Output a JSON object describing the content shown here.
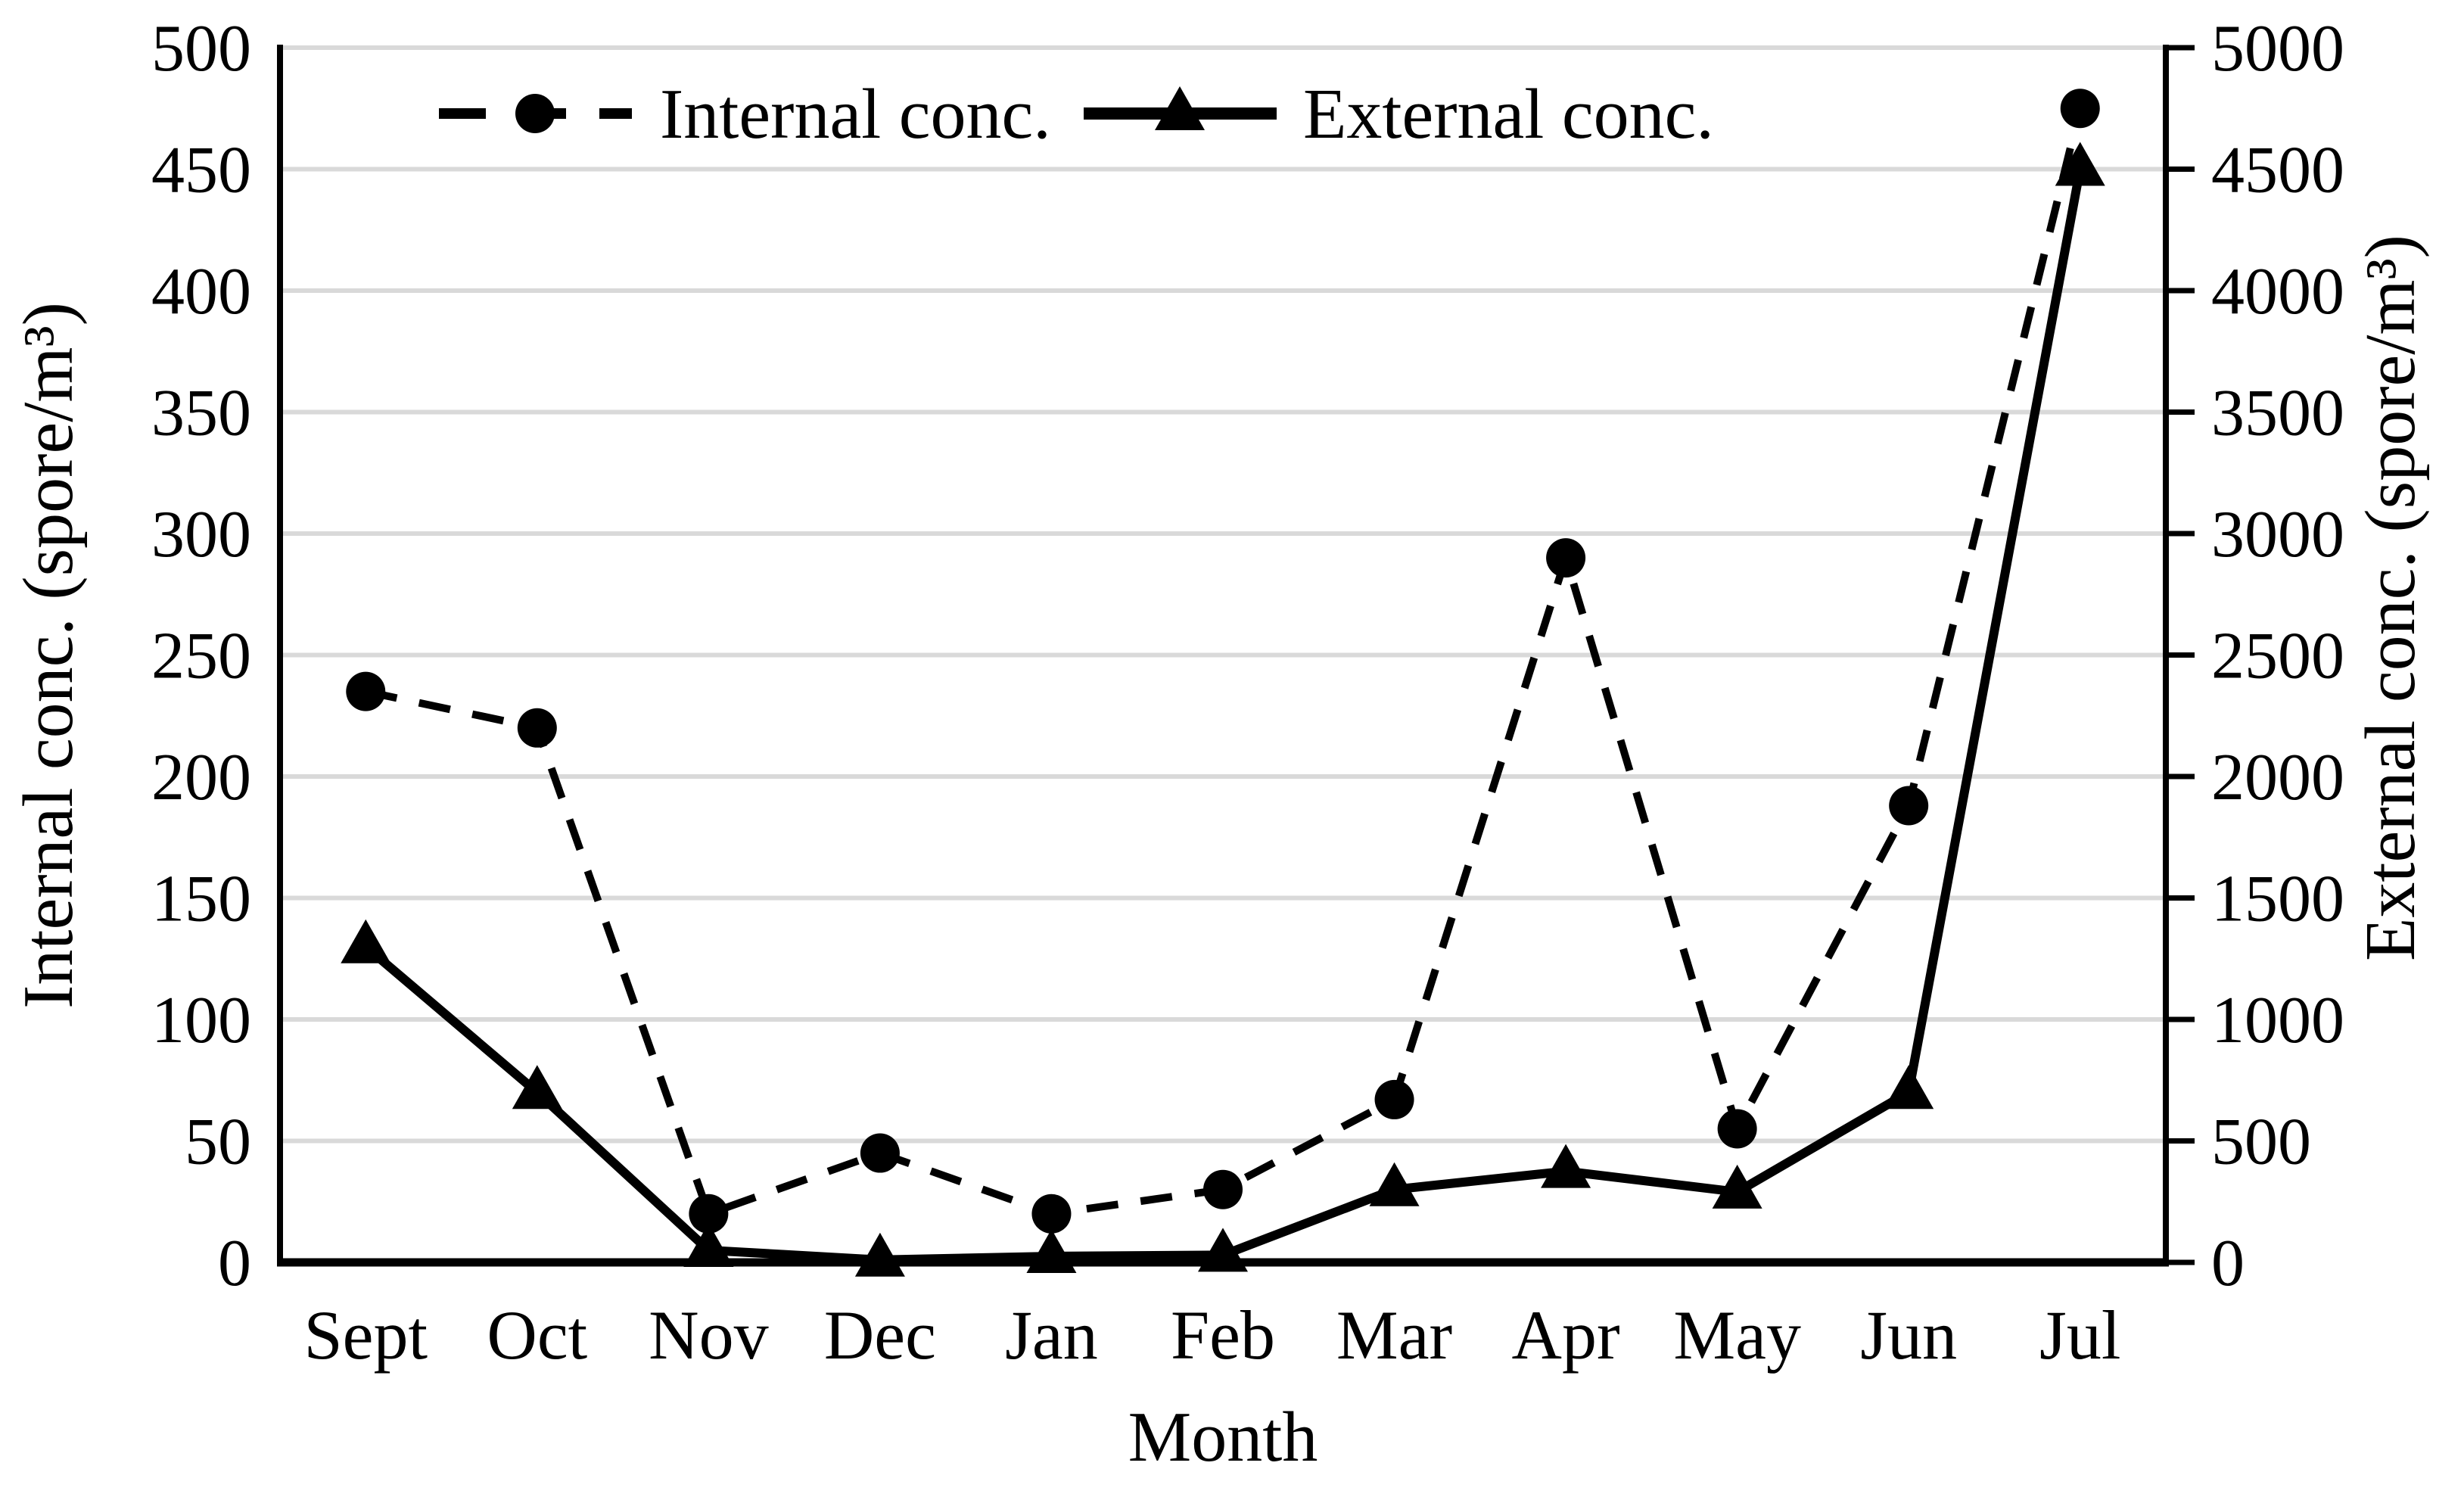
{
  "chart_data": {
    "type": "line",
    "title": "",
    "xlabel": "Month",
    "ylabel_left": "Internal conc. (spore/m³)",
    "ylabel_right": "External conc. (spore/m³)",
    "categories": [
      "Sept",
      "Oct",
      "Nov",
      "Dec",
      "Jan",
      "Feb",
      "Mar",
      "Apr",
      "May",
      "Jun",
      "Jul"
    ],
    "series": [
      {
        "name": "Internal conc.",
        "axis": "left",
        "line_style": "dashed",
        "marker": "circle",
        "values": [
          235,
          220,
          20,
          45,
          20,
          30,
          67,
          290,
          55,
          188,
          475
        ]
      },
      {
        "name": "External conc.",
        "axis": "right",
        "line_style": "solid",
        "marker": "triangle",
        "values": [
          1300,
          700,
          50,
          10,
          25,
          30,
          300,
          375,
          290,
          700,
          4500
        ]
      }
    ],
    "left_axis": {
      "min": 0,
      "max": 500,
      "step": 50,
      "ticks": [
        "0",
        "50",
        "100",
        "150",
        "200",
        "250",
        "300",
        "350",
        "400",
        "450",
        "500"
      ]
    },
    "right_axis": {
      "min": 0,
      "max": 5000,
      "step": 500,
      "ticks": [
        "0",
        "500",
        "1000",
        "1500",
        "2000",
        "2500",
        "3000",
        "3500",
        "4000",
        "4500",
        "5000"
      ]
    },
    "grid": true,
    "legend_position": "top-center",
    "colors": {
      "series": "#000000",
      "grid": "#d9d9d9",
      "background": "#ffffff"
    }
  }
}
